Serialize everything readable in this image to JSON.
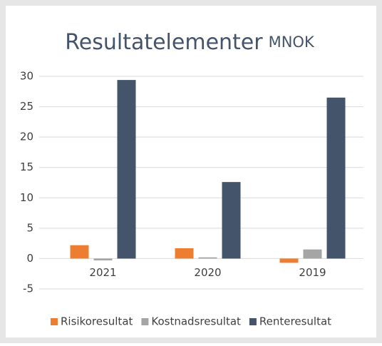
{
  "chart_data": {
    "type": "bar",
    "title": "Resultatelementer",
    "title_unit": "MNOK",
    "categories": [
      "2021",
      "2020",
      "2019"
    ],
    "series": [
      {
        "name": "Risikoresultat",
        "color": "#ed7d31",
        "values": [
          2.2,
          1.7,
          -0.7
        ]
      },
      {
        "name": "Kostnadsresultat",
        "color": "#a5a5a5",
        "values": [
          -0.3,
          0.2,
          1.5
        ]
      },
      {
        "name": "Renteresultat",
        "color": "#44546a",
        "values": [
          29.4,
          12.6,
          26.5
        ]
      }
    ],
    "ylim": [
      -5,
      30
    ],
    "yticks": [
      -5,
      0,
      5,
      10,
      15,
      20,
      25,
      30
    ],
    "grid": true,
    "legend": "bottom"
  }
}
